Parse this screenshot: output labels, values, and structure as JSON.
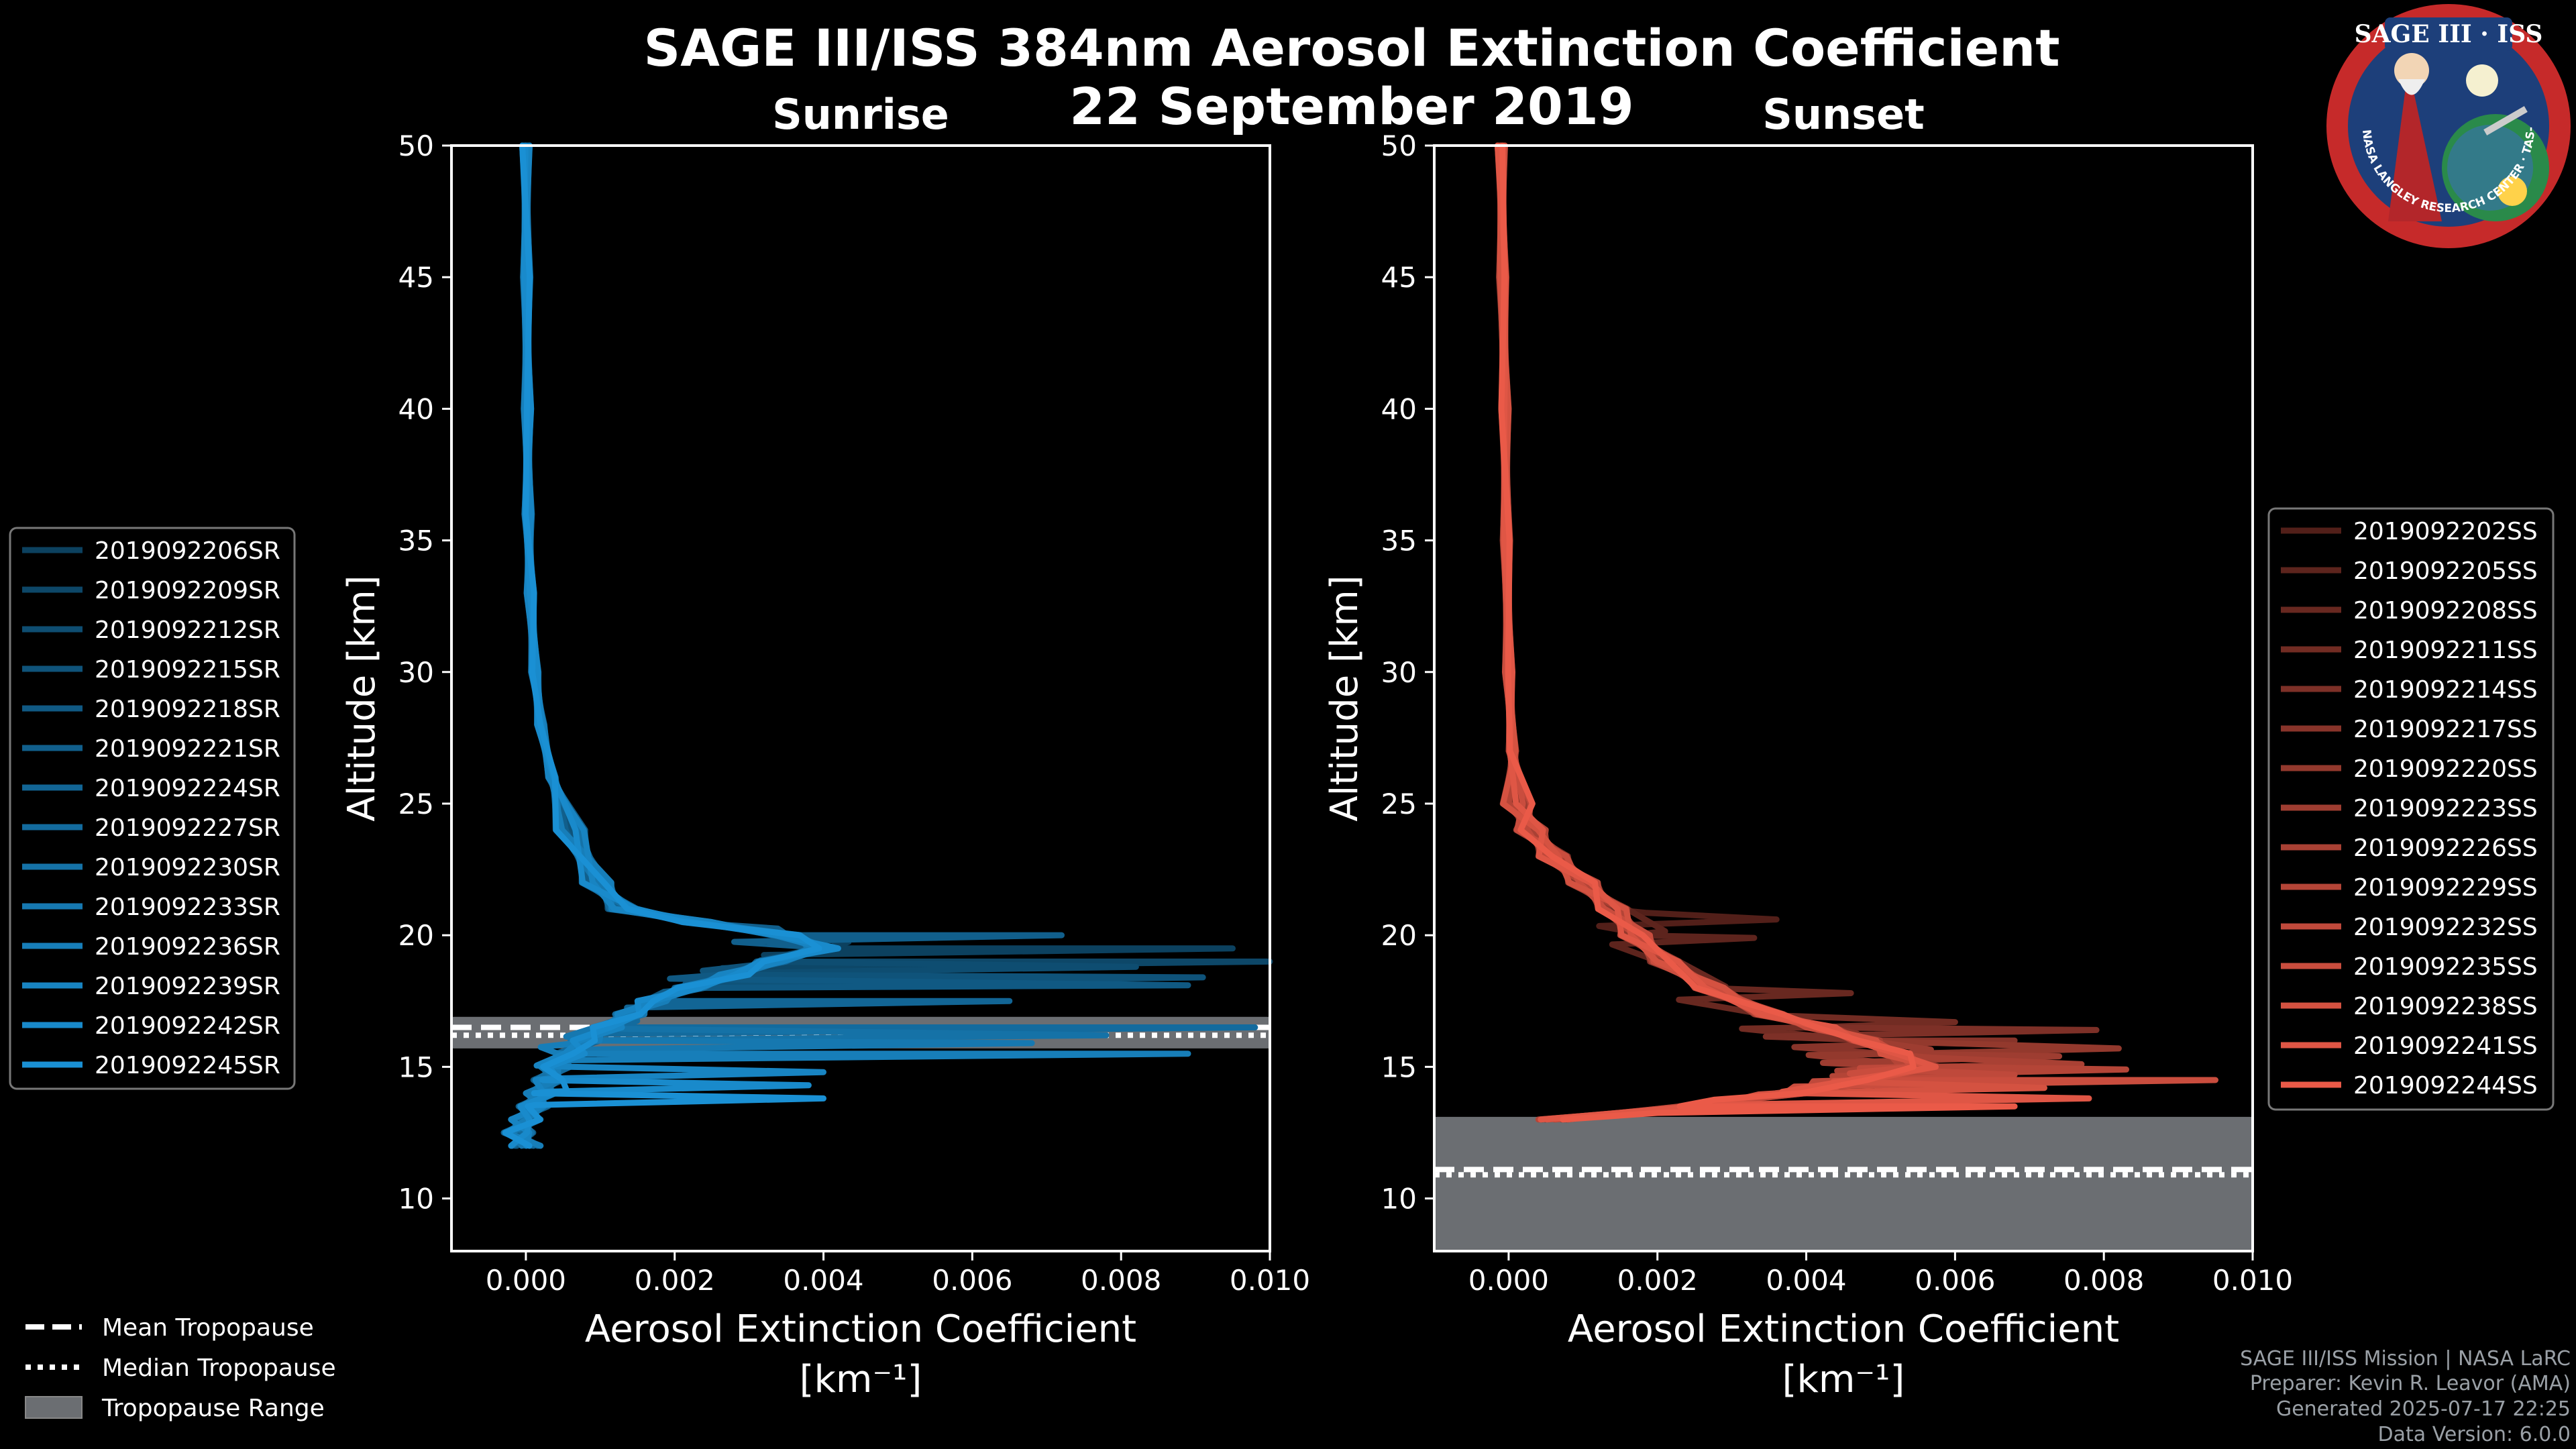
{
  "title": "SAGE III/ISS 384nm Aerosol Extinction Coefficient",
  "date": "22 September 2019",
  "logo": {
    "text": "SAGE III · ISS",
    "ring_text": "BALL · NASA LANGLEY RESEARCH CENTER · TAS-I · ESA"
  },
  "credits": [
    "SAGE III/ISS Mission | NASA LaRC",
    "Preparer: Kevin R. Leavor (AMA)",
    "Generated 2025-07-17 22:25",
    "Data Version: 6.0.0"
  ],
  "tropopause_legend": [
    "Mean Tropopause",
    "Median Tropopause",
    "Tropopause Range"
  ],
  "chart_data": [
    {
      "type": "line",
      "panel": "sunrise",
      "title": "Sunrise",
      "xlabel": "Aerosol Extinction Coefficient",
      "xlabel_units": "[km⁻¹]",
      "ylabel": "Altitude [km]",
      "xlim": [
        -0.001,
        0.01
      ],
      "ylim": [
        8,
        50
      ],
      "xticks": [
        0.0,
        0.002,
        0.004,
        0.006,
        0.008,
        0.01
      ],
      "xtick_labels": [
        "0.000",
        "0.002",
        "0.004",
        "0.006",
        "0.008",
        "0.010"
      ],
      "yticks": [
        10,
        15,
        20,
        25,
        30,
        35,
        40,
        45,
        50
      ],
      "color": "#1a90d4",
      "tropopause": {
        "mean": 16.5,
        "median": 16.2,
        "range": [
          15.7,
          16.9
        ]
      },
      "base_profile": {
        "alt": [
          50,
          45,
          40,
          36,
          33,
          30,
          28,
          26,
          24,
          22,
          21,
          20.5,
          20,
          19.5,
          19,
          18.5,
          18,
          17.5,
          17,
          16.5,
          16,
          15.5,
          15,
          14.5,
          14,
          13.5,
          13,
          12.5,
          12
        ],
        "value": [
          0.0,
          1e-05,
          2e-05,
          3e-05,
          6e-05,
          0.00012,
          0.0002,
          0.00035,
          0.0006,
          0.00095,
          0.0013,
          0.0023,
          0.0035,
          0.004,
          0.0033,
          0.0028,
          0.0022,
          0.0017,
          0.0014,
          0.0011,
          0.0008,
          0.0006,
          0.0004,
          0.0003,
          0.0002,
          0.0001,
          0.0,
          -0.0001,
          0.0
        ]
      },
      "series": [
        {
          "name": "2019092206SR",
          "peak_alt": 19.5,
          "peak_value": 0.0095
        },
        {
          "name": "2019092209SR",
          "peak_alt": 19.0,
          "peak_value": 0.0102
        },
        {
          "name": "2019092212SR",
          "peak_alt": 18.8,
          "peak_value": 0.0082
        },
        {
          "name": "2019092215SR",
          "peak_alt": 18.4,
          "peak_value": 0.0091
        },
        {
          "name": "2019092218SR",
          "peak_alt": 18.1,
          "peak_value": 0.0089
        },
        {
          "name": "2019092221SR",
          "peak_alt": 20.0,
          "peak_value": 0.0072
        },
        {
          "name": "2019092224SR",
          "peak_alt": 17.5,
          "peak_value": 0.0065
        },
        {
          "name": "2019092227SR",
          "peak_alt": 16.5,
          "peak_value": 0.0098
        },
        {
          "name": "2019092230SR",
          "peak_alt": 16.2,
          "peak_value": 0.0078
        },
        {
          "name": "2019092233SR",
          "peak_alt": 15.9,
          "peak_value": 0.0068
        },
        {
          "name": "2019092236SR",
          "peak_alt": 15.5,
          "peak_value": 0.0089
        },
        {
          "name": "2019092239SR",
          "peak_alt": 14.8,
          "peak_value": 0.004
        },
        {
          "name": "2019092242SR",
          "peak_alt": 14.3,
          "peak_value": 0.0038
        },
        {
          "name": "2019092245SR",
          "peak_alt": 13.8,
          "peak_value": 0.004
        }
      ]
    },
    {
      "type": "line",
      "panel": "sunset",
      "title": "Sunset",
      "xlabel": "Aerosol Extinction Coefficient",
      "xlabel_units": "[km⁻¹]",
      "ylabel": "Altitude [km]",
      "xlim": [
        -0.001,
        0.01
      ],
      "ylim": [
        8,
        50
      ],
      "xticks": [
        0.0,
        0.002,
        0.004,
        0.006,
        0.008,
        0.01
      ],
      "xtick_labels": [
        "0.000",
        "0.002",
        "0.004",
        "0.006",
        "0.008",
        "0.010"
      ],
      "yticks": [
        10,
        15,
        20,
        25,
        30,
        35,
        40,
        45,
        50
      ],
      "color": "#ea5a48",
      "tropopause": {
        "mean": 11.1,
        "median": 10.9,
        "range": [
          8,
          13.1
        ]
      },
      "base_profile": {
        "alt": [
          50,
          45,
          40,
          35,
          30,
          27,
          25,
          24,
          23,
          22,
          21,
          20,
          19,
          18,
          17,
          16.5,
          16,
          15.5,
          15,
          14.5,
          14,
          13.5,
          13
        ],
        "value": [
          -0.0001,
          -8e-05,
          -5e-05,
          -3e-05,
          0.0,
          5e-05,
          0.00012,
          0.0003,
          0.0006,
          0.001,
          0.0014,
          0.0017,
          0.0021,
          0.0027,
          0.0035,
          0.0042,
          0.0048,
          0.0052,
          0.0056,
          0.0048,
          0.0038,
          0.0025,
          0.0006
        ]
      },
      "series": [
        {
          "name": "2019092202SS",
          "peak_alt": 20.6,
          "peak_value": 0.0036
        },
        {
          "name": "2019092205SS",
          "peak_alt": 19.9,
          "peak_value": 0.0033
        },
        {
          "name": "2019092208SS",
          "peak_alt": 17.8,
          "peak_value": 0.0046
        },
        {
          "name": "2019092211SS",
          "peak_alt": 16.7,
          "peak_value": 0.006
        },
        {
          "name": "2019092214SS",
          "peak_alt": 16.4,
          "peak_value": 0.0079
        },
        {
          "name": "2019092217SS",
          "peak_alt": 16.0,
          "peak_value": 0.0068
        },
        {
          "name": "2019092220SS",
          "peak_alt": 15.7,
          "peak_value": 0.0082
        },
        {
          "name": "2019092223SS",
          "peak_alt": 15.4,
          "peak_value": 0.0074
        },
        {
          "name": "2019092226SS",
          "peak_alt": 15.1,
          "peak_value": 0.0077
        },
        {
          "name": "2019092229SS",
          "peak_alt": 14.9,
          "peak_value": 0.0083
        },
        {
          "name": "2019092232SS",
          "peak_alt": 14.7,
          "peak_value": 0.0068
        },
        {
          "name": "2019092235SS",
          "peak_alt": 14.5,
          "peak_value": 0.0095
        },
        {
          "name": "2019092238SS",
          "peak_alt": 14.2,
          "peak_value": 0.0072
        },
        {
          "name": "2019092241SS",
          "peak_alt": 13.8,
          "peak_value": 0.0078
        },
        {
          "name": "2019092244SS",
          "peak_alt": 13.5,
          "peak_value": 0.0068
        }
      ]
    }
  ]
}
